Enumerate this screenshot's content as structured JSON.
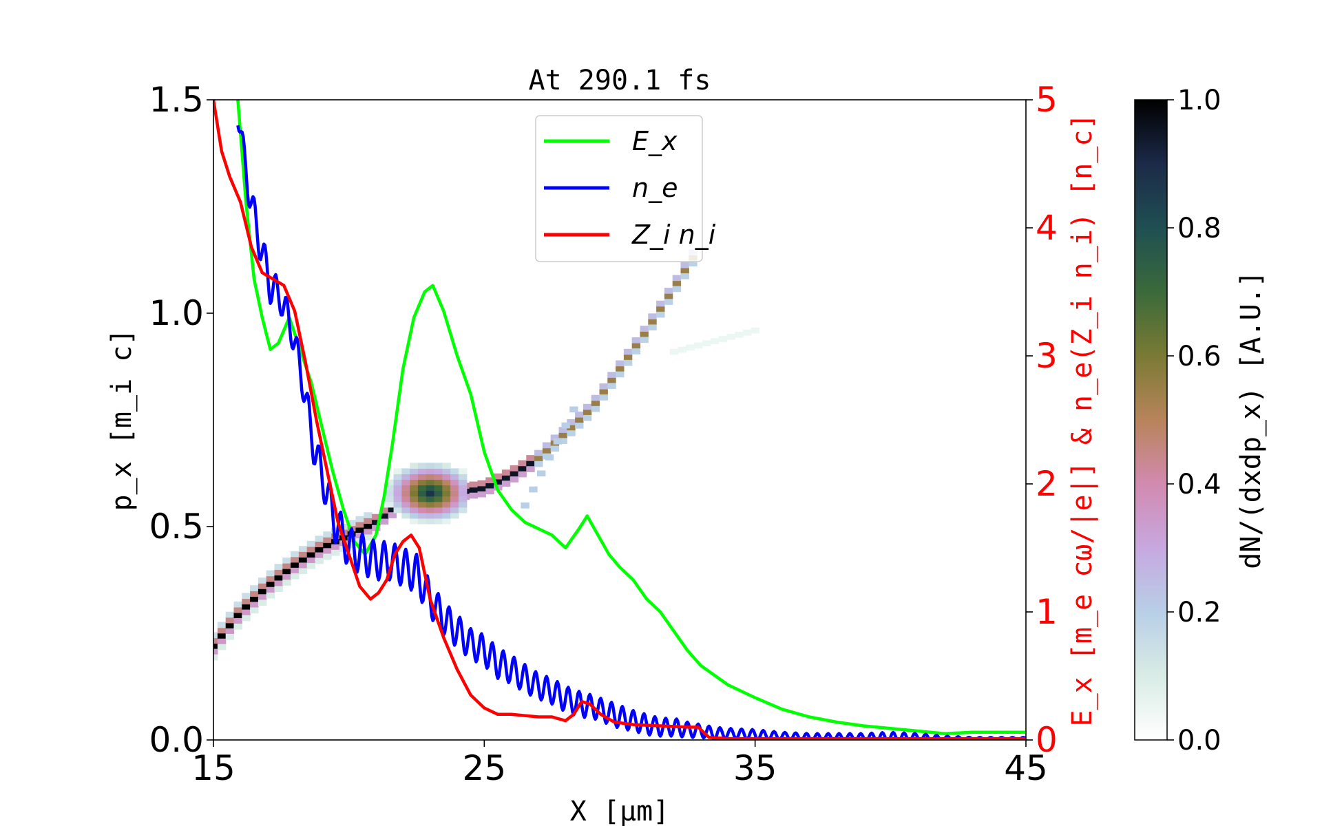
{
  "chart_data": {
    "type": "line",
    "title": "At 290.1 fs",
    "xlabel": "X  [μm]",
    "ylabel_left": "p_x  [m_i c]",
    "ylabel_right": "E_x  [m_e cω/|e|]  &  n_e(Z_i n_i)  [n_c]",
    "colorbar_label": "dN/(dxdp_x)  [A.U.]",
    "xlim": [
      15,
      45
    ],
    "ylim_left": [
      0,
      1.5
    ],
    "ylim_right": [
      0,
      5
    ],
    "colorbar_range": [
      0,
      1
    ],
    "x_ticks": [
      "15",
      "25",
      "35",
      "45"
    ],
    "y_left_ticks": [
      "0.0",
      "0.5",
      "1.0",
      "1.5"
    ],
    "y_right_ticks": [
      "0",
      "1",
      "2",
      "3",
      "4",
      "5"
    ],
    "colorbar_ticks": [
      "0.0",
      "0.2",
      "0.4",
      "0.6",
      "0.8",
      "1.0"
    ],
    "legend": {
      "position": "upper-center",
      "entries": [
        {
          "label": "E_x",
          "color": "#00ff00"
        },
        {
          "label": "n_e",
          "color": "#0000ff"
        },
        {
          "label": "Z_i n_i",
          "color": "#ff0000"
        }
      ]
    },
    "series": [
      {
        "name": "E_x",
        "axis": "right",
        "color": "#00ff00",
        "x": [
          15.9,
          16.2,
          16.5,
          16.8,
          17.1,
          17.4,
          17.8,
          18.2,
          18.6,
          19.0,
          19.4,
          19.8,
          20.2,
          20.6,
          21.0,
          21.3,
          21.6,
          22.0,
          22.4,
          22.8,
          23.1,
          23.5,
          24.0,
          24.5,
          25.0,
          25.5,
          26.0,
          26.5,
          27.0,
          27.5,
          28.0,
          28.5,
          28.8,
          29.2,
          29.6,
          30.0,
          30.5,
          31.0,
          31.5,
          32.0,
          32.5,
          33.0,
          34.0,
          35.0,
          36.0,
          37.0,
          38.0,
          39.0,
          40.0,
          41.0,
          42.0,
          43.0,
          44.0,
          45.0
        ],
        "y": [
          5.0,
          4.2,
          3.6,
          3.3,
          3.05,
          3.1,
          3.3,
          3.05,
          2.8,
          2.45,
          2.1,
          1.8,
          1.55,
          1.45,
          1.6,
          1.9,
          2.3,
          2.9,
          3.3,
          3.5,
          3.55,
          3.35,
          3.0,
          2.7,
          2.25,
          1.95,
          1.8,
          1.7,
          1.65,
          1.6,
          1.5,
          1.65,
          1.75,
          1.6,
          1.45,
          1.35,
          1.25,
          1.1,
          1.0,
          0.85,
          0.7,
          0.58,
          0.43,
          0.33,
          0.24,
          0.18,
          0.14,
          0.11,
          0.09,
          0.07,
          0.05,
          0.06,
          0.06,
          0.06
        ]
      },
      {
        "name": "n_e",
        "axis": "right",
        "color": "#0000ff",
        "x": [
          15.9,
          16.3,
          16.7,
          17.1,
          17.5,
          17.9,
          18.3,
          18.7,
          19.1,
          19.5,
          20.0,
          20.5,
          21.0,
          21.5,
          22.0,
          22.5,
          23.0,
          23.5,
          24.0,
          24.5,
          25.0,
          25.5,
          26.0,
          26.5,
          27.0,
          27.5,
          28.0,
          28.5,
          29.0,
          29.5,
          30.0,
          30.5,
          31.0,
          31.5,
          32.0,
          32.5,
          33.0,
          33.5,
          34.0,
          35.0,
          36.0,
          37.0,
          38.0,
          39.0,
          40.0,
          41.0,
          42.0,
          43.0,
          44.0,
          45.0
        ],
        "y": [
          4.9,
          4.3,
          3.9,
          3.55,
          3.45,
          3.2,
          2.8,
          2.3,
          2.0,
          1.7,
          1.5,
          1.45,
          1.4,
          1.4,
          1.35,
          1.3,
          1.1,
          0.95,
          0.85,
          0.75,
          0.7,
          0.6,
          0.55,
          0.48,
          0.42,
          0.38,
          0.32,
          0.28,
          0.26,
          0.22,
          0.18,
          0.15,
          0.12,
          0.1,
          0.1,
          0.08,
          0.07,
          0.05,
          0.05,
          0.04,
          0.03,
          0.02,
          0.02,
          0.02,
          0.02,
          0.02,
          0.01,
          0.01,
          0.01,
          0.01
        ],
        "oscillation_amplitude": [
          0.1,
          0.12,
          0.14,
          0.14,
          0.13,
          0.13,
          0.13,
          0.14,
          0.15,
          0.16,
          0.16,
          0.16,
          0.15,
          0.15,
          0.15,
          0.15,
          0.14,
          0.13,
          0.13,
          0.12,
          0.12,
          0.12,
          0.11,
          0.11,
          0.1,
          0.1,
          0.1,
          0.1,
          0.09,
          0.09,
          0.09,
          0.08,
          0.08,
          0.07,
          0.07,
          0.06,
          0.05,
          0.05,
          0.04,
          0.04,
          0.03,
          0.03,
          0.03,
          0.03,
          0.04,
          0.03,
          0.02,
          0.01,
          0.01,
          0.01
        ]
      },
      {
        "name": "Z_i n_i",
        "axis": "right",
        "color": "#ff0000",
        "x": [
          15.0,
          15.3,
          15.6,
          16.0,
          16.4,
          16.8,
          17.2,
          17.6,
          18.0,
          18.4,
          18.8,
          19.2,
          19.6,
          20.0,
          20.4,
          20.8,
          21.1,
          21.4,
          21.7,
          22.0,
          22.3,
          22.6,
          23.0,
          23.5,
          24.0,
          24.5,
          25.0,
          25.5,
          26.0,
          27.0,
          27.5,
          28.0,
          28.3,
          28.6,
          28.9,
          29.3,
          29.8,
          30.5,
          31.5,
          32.5,
          32.9,
          33.3,
          34.0,
          36.0,
          38.0,
          40.0,
          42.0,
          45.0
        ],
        "y": [
          5.0,
          4.6,
          4.4,
          4.2,
          3.85,
          3.65,
          3.6,
          3.55,
          3.35,
          2.95,
          2.5,
          2.1,
          1.7,
          1.45,
          1.2,
          1.1,
          1.15,
          1.25,
          1.45,
          1.55,
          1.6,
          1.5,
          1.1,
          0.8,
          0.55,
          0.35,
          0.25,
          0.2,
          0.2,
          0.18,
          0.18,
          0.15,
          0.2,
          0.3,
          0.28,
          0.2,
          0.14,
          0.12,
          0.11,
          0.1,
          0.1,
          0.02,
          0.01,
          0.01,
          0.01,
          0.01,
          0.01,
          0.01
        ]
      }
    ],
    "phase_space": {
      "colormap": "cubehelix_r",
      "cell_size_um": 0.3,
      "cell_size_px": 0.013,
      "main_branch": {
        "x": [
          15.0,
          16.0,
          17.0,
          18.0,
          19.0,
          20.0,
          21.0,
          22.0,
          23.0,
          24.0,
          25.0,
          26.0,
          27.0,
          28.0,
          29.0,
          30.0,
          31.0,
          32.0,
          33.0
        ],
        "px": [
          0.22,
          0.3,
          0.36,
          0.41,
          0.45,
          0.48,
          0.51,
          0.56,
          0.58,
          0.58,
          0.59,
          0.62,
          0.66,
          0.72,
          0.78,
          0.87,
          0.96,
          1.06,
          1.16
        ]
      },
      "blob": {
        "x": [
          21.5,
          24.5
        ],
        "px": [
          0.5,
          0.66
        ]
      },
      "faint_branch": {
        "x": [
          26.5,
          28.5
        ],
        "px": [
          0.55,
          0.8
        ]
      },
      "faint_patch": {
        "x": [
          32,
          35
        ],
        "px": [
          0.91,
          0.96
        ]
      }
    }
  }
}
